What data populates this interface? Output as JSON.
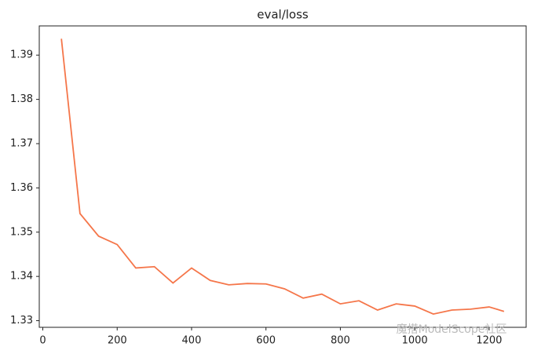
{
  "chart_data": {
    "type": "line",
    "title": "eval/loss",
    "x": [
      50,
      100,
      150,
      200,
      250,
      300,
      350,
      400,
      450,
      500,
      550,
      600,
      650,
      700,
      750,
      800,
      850,
      900,
      950,
      1000,
      1050,
      1100,
      1150,
      1200,
      1240
    ],
    "values": [
      1.3937,
      1.3542,
      1.3491,
      1.3472,
      1.3419,
      1.3422,
      1.3385,
      1.3419,
      1.3391,
      1.3381,
      1.3384,
      1.3383,
      1.3372,
      1.3351,
      1.336,
      1.3338,
      1.3345,
      1.3324,
      1.3338,
      1.3333,
      1.3315,
      1.3324,
      1.3326,
      1.3331,
      1.3321
    ],
    "color": "#f5764a",
    "xlim": [
      -9.5,
      1299.5
    ],
    "xticks": [
      0,
      200,
      400,
      600,
      800,
      1000,
      1200
    ],
    "ylim": [
      1.3285,
      1.3966
    ],
    "yticks": [
      1.33,
      1.34,
      1.35,
      1.36,
      1.37,
      1.38,
      1.39
    ],
    "grid": false,
    "watermark": "魔搭ModelScope社区"
  }
}
